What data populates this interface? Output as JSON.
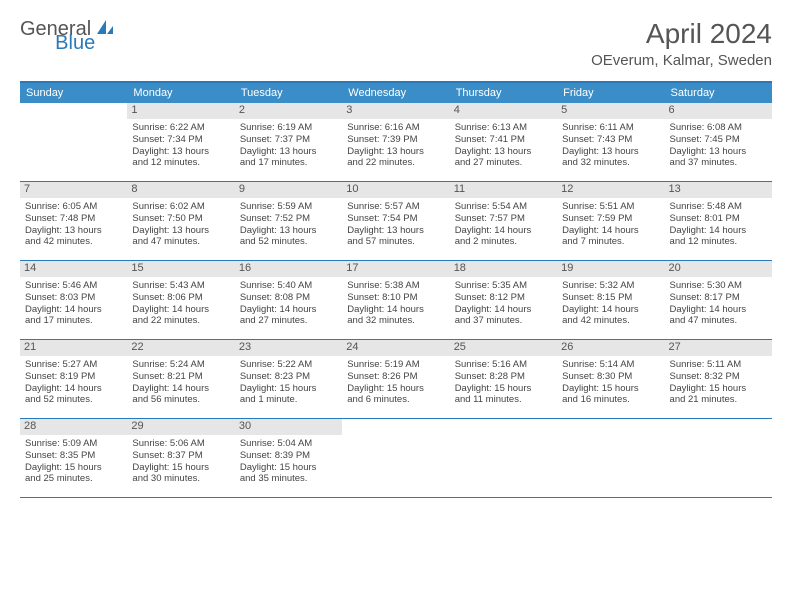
{
  "logo": {
    "text_gray": "General",
    "text_blue": "Blue"
  },
  "title": "April 2024",
  "location": "OEverum, Kalmar, Sweden",
  "colors": {
    "header_bg": "#3b8dc7",
    "border": "#2a7ab9",
    "daynum_bg": "#e6e6e6",
    "text": "#555555"
  },
  "day_names": [
    "Sunday",
    "Monday",
    "Tuesday",
    "Wednesday",
    "Thursday",
    "Friday",
    "Saturday"
  ],
  "weeks": [
    [
      {
        "num": "",
        "sunrise": "",
        "sunset": "",
        "daylight1": "",
        "daylight2": ""
      },
      {
        "num": "1",
        "sunrise": "Sunrise: 6:22 AM",
        "sunset": "Sunset: 7:34 PM",
        "daylight1": "Daylight: 13 hours",
        "daylight2": "and 12 minutes."
      },
      {
        "num": "2",
        "sunrise": "Sunrise: 6:19 AM",
        "sunset": "Sunset: 7:37 PM",
        "daylight1": "Daylight: 13 hours",
        "daylight2": "and 17 minutes."
      },
      {
        "num": "3",
        "sunrise": "Sunrise: 6:16 AM",
        "sunset": "Sunset: 7:39 PM",
        "daylight1": "Daylight: 13 hours",
        "daylight2": "and 22 minutes."
      },
      {
        "num": "4",
        "sunrise": "Sunrise: 6:13 AM",
        "sunset": "Sunset: 7:41 PM",
        "daylight1": "Daylight: 13 hours",
        "daylight2": "and 27 minutes."
      },
      {
        "num": "5",
        "sunrise": "Sunrise: 6:11 AM",
        "sunset": "Sunset: 7:43 PM",
        "daylight1": "Daylight: 13 hours",
        "daylight2": "and 32 minutes."
      },
      {
        "num": "6",
        "sunrise": "Sunrise: 6:08 AM",
        "sunset": "Sunset: 7:45 PM",
        "daylight1": "Daylight: 13 hours",
        "daylight2": "and 37 minutes."
      }
    ],
    [
      {
        "num": "7",
        "sunrise": "Sunrise: 6:05 AM",
        "sunset": "Sunset: 7:48 PM",
        "daylight1": "Daylight: 13 hours",
        "daylight2": "and 42 minutes."
      },
      {
        "num": "8",
        "sunrise": "Sunrise: 6:02 AM",
        "sunset": "Sunset: 7:50 PM",
        "daylight1": "Daylight: 13 hours",
        "daylight2": "and 47 minutes."
      },
      {
        "num": "9",
        "sunrise": "Sunrise: 5:59 AM",
        "sunset": "Sunset: 7:52 PM",
        "daylight1": "Daylight: 13 hours",
        "daylight2": "and 52 minutes."
      },
      {
        "num": "10",
        "sunrise": "Sunrise: 5:57 AM",
        "sunset": "Sunset: 7:54 PM",
        "daylight1": "Daylight: 13 hours",
        "daylight2": "and 57 minutes."
      },
      {
        "num": "11",
        "sunrise": "Sunrise: 5:54 AM",
        "sunset": "Sunset: 7:57 PM",
        "daylight1": "Daylight: 14 hours",
        "daylight2": "and 2 minutes."
      },
      {
        "num": "12",
        "sunrise": "Sunrise: 5:51 AM",
        "sunset": "Sunset: 7:59 PM",
        "daylight1": "Daylight: 14 hours",
        "daylight2": "and 7 minutes."
      },
      {
        "num": "13",
        "sunrise": "Sunrise: 5:48 AM",
        "sunset": "Sunset: 8:01 PM",
        "daylight1": "Daylight: 14 hours",
        "daylight2": "and 12 minutes."
      }
    ],
    [
      {
        "num": "14",
        "sunrise": "Sunrise: 5:46 AM",
        "sunset": "Sunset: 8:03 PM",
        "daylight1": "Daylight: 14 hours",
        "daylight2": "and 17 minutes."
      },
      {
        "num": "15",
        "sunrise": "Sunrise: 5:43 AM",
        "sunset": "Sunset: 8:06 PM",
        "daylight1": "Daylight: 14 hours",
        "daylight2": "and 22 minutes."
      },
      {
        "num": "16",
        "sunrise": "Sunrise: 5:40 AM",
        "sunset": "Sunset: 8:08 PM",
        "daylight1": "Daylight: 14 hours",
        "daylight2": "and 27 minutes."
      },
      {
        "num": "17",
        "sunrise": "Sunrise: 5:38 AM",
        "sunset": "Sunset: 8:10 PM",
        "daylight1": "Daylight: 14 hours",
        "daylight2": "and 32 minutes."
      },
      {
        "num": "18",
        "sunrise": "Sunrise: 5:35 AM",
        "sunset": "Sunset: 8:12 PM",
        "daylight1": "Daylight: 14 hours",
        "daylight2": "and 37 minutes."
      },
      {
        "num": "19",
        "sunrise": "Sunrise: 5:32 AM",
        "sunset": "Sunset: 8:15 PM",
        "daylight1": "Daylight: 14 hours",
        "daylight2": "and 42 minutes."
      },
      {
        "num": "20",
        "sunrise": "Sunrise: 5:30 AM",
        "sunset": "Sunset: 8:17 PM",
        "daylight1": "Daylight: 14 hours",
        "daylight2": "and 47 minutes."
      }
    ],
    [
      {
        "num": "21",
        "sunrise": "Sunrise: 5:27 AM",
        "sunset": "Sunset: 8:19 PM",
        "daylight1": "Daylight: 14 hours",
        "daylight2": "and 52 minutes."
      },
      {
        "num": "22",
        "sunrise": "Sunrise: 5:24 AM",
        "sunset": "Sunset: 8:21 PM",
        "daylight1": "Daylight: 14 hours",
        "daylight2": "and 56 minutes."
      },
      {
        "num": "23",
        "sunrise": "Sunrise: 5:22 AM",
        "sunset": "Sunset: 8:23 PM",
        "daylight1": "Daylight: 15 hours",
        "daylight2": "and 1 minute."
      },
      {
        "num": "24",
        "sunrise": "Sunrise: 5:19 AM",
        "sunset": "Sunset: 8:26 PM",
        "daylight1": "Daylight: 15 hours",
        "daylight2": "and 6 minutes."
      },
      {
        "num": "25",
        "sunrise": "Sunrise: 5:16 AM",
        "sunset": "Sunset: 8:28 PM",
        "daylight1": "Daylight: 15 hours",
        "daylight2": "and 11 minutes."
      },
      {
        "num": "26",
        "sunrise": "Sunrise: 5:14 AM",
        "sunset": "Sunset: 8:30 PM",
        "daylight1": "Daylight: 15 hours",
        "daylight2": "and 16 minutes."
      },
      {
        "num": "27",
        "sunrise": "Sunrise: 5:11 AM",
        "sunset": "Sunset: 8:32 PM",
        "daylight1": "Daylight: 15 hours",
        "daylight2": "and 21 minutes."
      }
    ],
    [
      {
        "num": "28",
        "sunrise": "Sunrise: 5:09 AM",
        "sunset": "Sunset: 8:35 PM",
        "daylight1": "Daylight: 15 hours",
        "daylight2": "and 25 minutes."
      },
      {
        "num": "29",
        "sunrise": "Sunrise: 5:06 AM",
        "sunset": "Sunset: 8:37 PM",
        "daylight1": "Daylight: 15 hours",
        "daylight2": "and 30 minutes."
      },
      {
        "num": "30",
        "sunrise": "Sunrise: 5:04 AM",
        "sunset": "Sunset: 8:39 PM",
        "daylight1": "Daylight: 15 hours",
        "daylight2": "and 35 minutes."
      },
      {
        "num": "",
        "sunrise": "",
        "sunset": "",
        "daylight1": "",
        "daylight2": ""
      },
      {
        "num": "",
        "sunrise": "",
        "sunset": "",
        "daylight1": "",
        "daylight2": ""
      },
      {
        "num": "",
        "sunrise": "",
        "sunset": "",
        "daylight1": "",
        "daylight2": ""
      },
      {
        "num": "",
        "sunrise": "",
        "sunset": "",
        "daylight1": "",
        "daylight2": ""
      }
    ]
  ]
}
